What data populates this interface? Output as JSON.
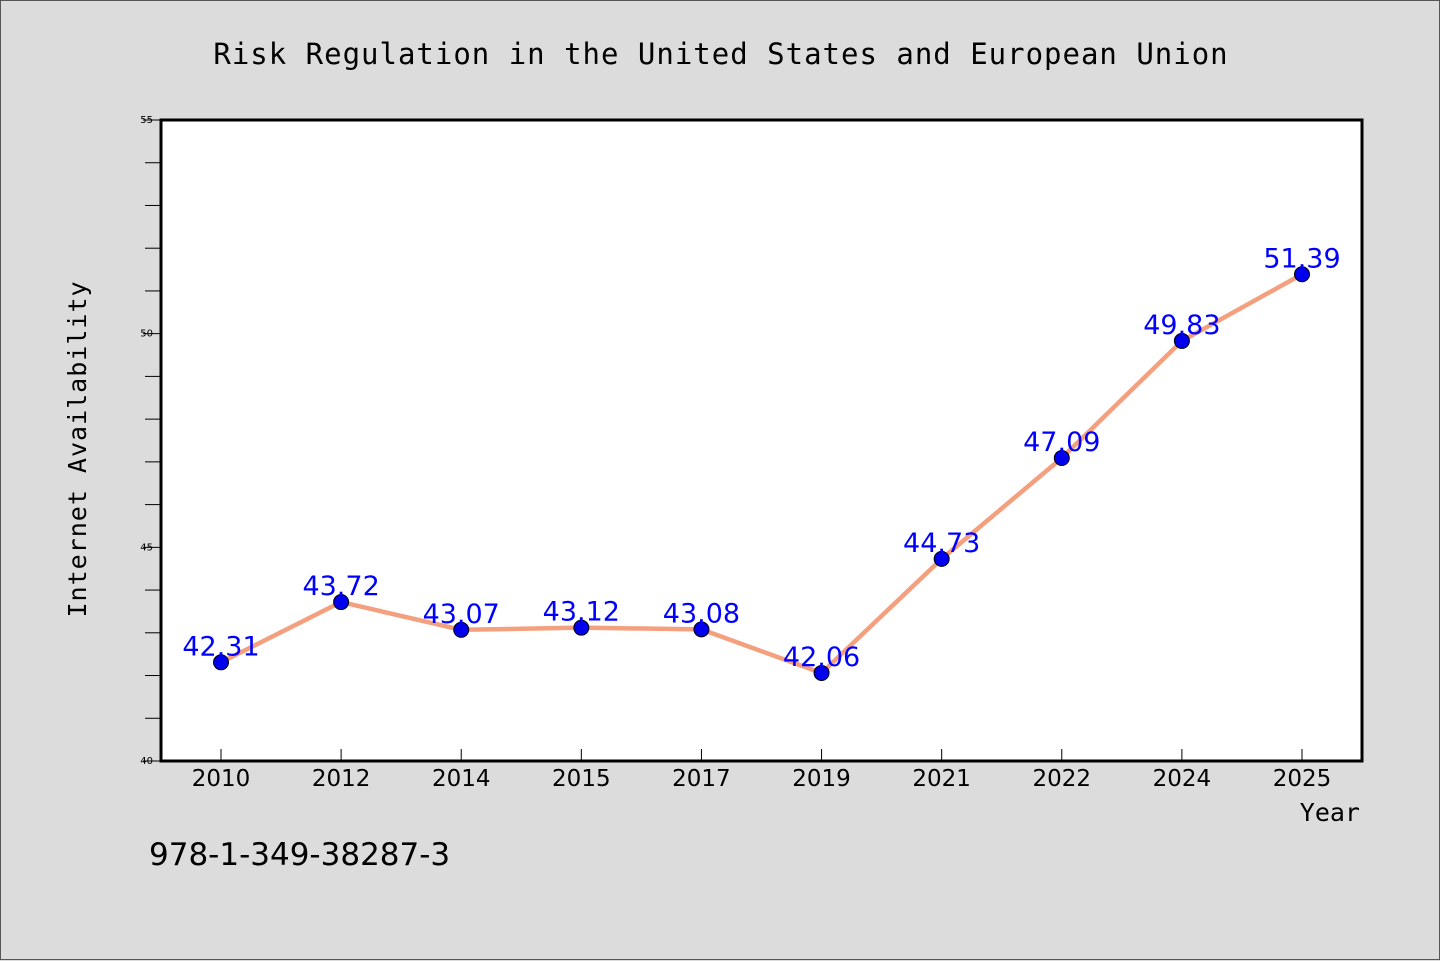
{
  "chart_data": {
    "type": "line",
    "title": "Risk Regulation in the United States and European Union",
    "xlabel": "Year",
    "ylabel": "Internet Availability",
    "categories": [
      "2010",
      "2012",
      "2014",
      "2015",
      "2017",
      "2019",
      "2021",
      "2022",
      "2024",
      "2025"
    ],
    "series": [
      {
        "values": [
          42.31,
          43.72,
          43.07,
          43.12,
          43.08,
          42.06,
          44.73,
          47.09,
          49.83,
          51.39
        ],
        "labels": [
          "42.31",
          "43.72",
          "43.07",
          "43.12",
          "43.08",
          "42.06",
          "44.73",
          "47.09",
          "49.83",
          "51.39"
        ]
      }
    ],
    "ylim": [
      40,
      55
    ],
    "yticks": [
      "40",
      "45",
      "50",
      "55"
    ],
    "grid": false,
    "legend": "none",
    "colors": {
      "background": "#dcdcdc",
      "plot_area": "#ffffff",
      "line": "#f4a07e",
      "marker": "#0000ee",
      "data_label": "#0000ff"
    }
  },
  "footer_text": "978-1-349-38287-3"
}
